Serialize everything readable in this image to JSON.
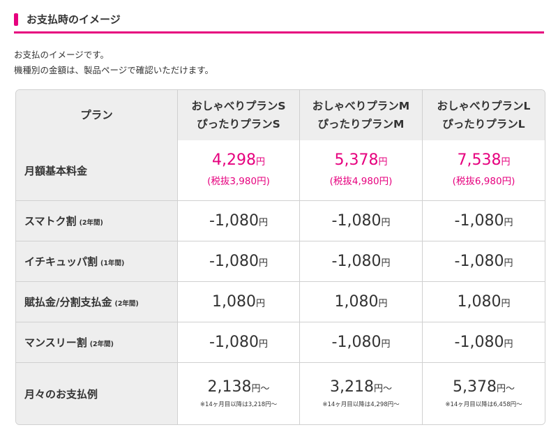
{
  "heading": {
    "title": "お支払時のイメージ"
  },
  "intro": {
    "line1": "お支払のイメージです。",
    "line2": "機種別の金額は、製品ページで確認いただけます。"
  },
  "table": {
    "corner": "プラン",
    "plans": [
      {
        "line1": "おしゃべりプランS",
        "line2": "ぴったりプランS"
      },
      {
        "line1": "おしゃべりプランM",
        "line2": "ぴったりプランM"
      },
      {
        "line1": "おしゃべりプランL",
        "line2": "ぴったりプランL"
      }
    ],
    "rows": {
      "base": {
        "label": "月額基本料金",
        "cells": [
          {
            "price": "4,298",
            "unit": "円",
            "sub": "(税抜3,980円)"
          },
          {
            "price": "5,378",
            "unit": "円",
            "sub": "(税抜4,980円)"
          },
          {
            "price": "7,538",
            "unit": "円",
            "sub": "(税抜6,980円)"
          }
        ]
      },
      "smart": {
        "label": "スマトク割",
        "note": "(2年間)",
        "cells": [
          {
            "value": "-1,080",
            "unit": "円"
          },
          {
            "value": "-1,080",
            "unit": "円"
          },
          {
            "value": "-1,080",
            "unit": "円"
          }
        ]
      },
      "ichi": {
        "label": "イチキュッパ割",
        "note": "(1年間)",
        "cells": [
          {
            "value": "-1,080",
            "unit": "円"
          },
          {
            "value": "-1,080",
            "unit": "円"
          },
          {
            "value": "-1,080",
            "unit": "円"
          }
        ]
      },
      "install": {
        "label": "賦払金/分割支払金",
        "note": "(2年間)",
        "cells": [
          {
            "value": "1,080",
            "unit": "円"
          },
          {
            "value": "1,080",
            "unit": "円"
          },
          {
            "value": "1,080",
            "unit": "円"
          }
        ]
      },
      "monthly": {
        "label": "マンスリー割",
        "note": "(2年間)",
        "cells": [
          {
            "value": "-1,080",
            "unit": "円"
          },
          {
            "value": "-1,080",
            "unit": "円"
          },
          {
            "value": "-1,080",
            "unit": "円"
          }
        ]
      },
      "total": {
        "label": "月々のお支払例",
        "cells": [
          {
            "value": "2,138",
            "unit": "円〜",
            "note": "※14ヶ月目以降は3,218円〜"
          },
          {
            "value": "3,218",
            "unit": "円〜",
            "note": "※14ヶ月目以降は4,298円〜"
          },
          {
            "value": "5,378",
            "unit": "円〜",
            "note": "※14ヶ月目以降は6,458円〜"
          }
        ]
      }
    }
  },
  "colors": {
    "accent": "#e6007e",
    "header_bg": "#eeeeee",
    "border": "#d0d0d0"
  }
}
